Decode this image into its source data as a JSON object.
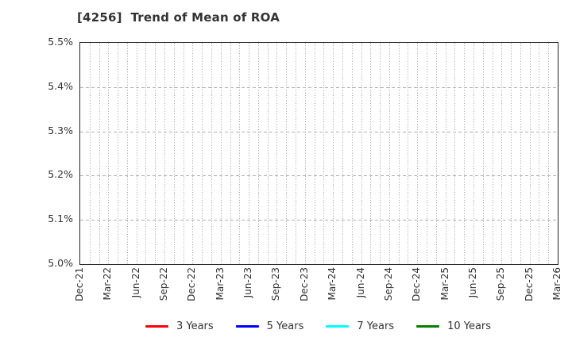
{
  "title": "[4256]  Trend of Mean of ROA",
  "chart_data": {
    "type": "line",
    "title": "[4256]  Trend of Mean of ROA",
    "x_labels": [
      "Dec-21",
      "Mar-22",
      "Jun-22",
      "Sep-22",
      "Dec-22",
      "Mar-23",
      "Jun-23",
      "Sep-23",
      "Dec-23",
      "Mar-24",
      "Jun-24",
      "Sep-24",
      "Dec-24",
      "Mar-25",
      "Jun-25",
      "Sep-25",
      "Dec-25",
      "Mar-26"
    ],
    "y_tick_labels": [
      "5.0%",
      "5.1%",
      "5.2%",
      "5.3%",
      "5.4%",
      "5.5%"
    ],
    "y_tick_values": [
      5.0,
      5.1,
      5.2,
      5.3,
      5.4,
      5.5
    ],
    "ylim": [
      5.0,
      5.5
    ],
    "xlabel": "",
    "ylabel": "",
    "grid": {
      "vertical": "dotted, one line per month",
      "horizontal": "dashed, at each y tick",
      "vertical_color": "#999999",
      "horizontal_color": "#b0b0b0"
    },
    "months_per_x_tick": 3,
    "legend_position": "bottom-center",
    "series": [
      {
        "name": "3 Years",
        "color": "#ff0000",
        "values": []
      },
      {
        "name": "5 Years",
        "color": "#0000ff",
        "values": []
      },
      {
        "name": "7 Years",
        "color": "#00ffff",
        "values": []
      },
      {
        "name": "10 Years",
        "color": "#008000",
        "values": []
      }
    ]
  },
  "colors": {
    "title_text": "#333333",
    "tick_text": "#333333",
    "plot_border": "#262626",
    "background": "#ffffff"
  }
}
